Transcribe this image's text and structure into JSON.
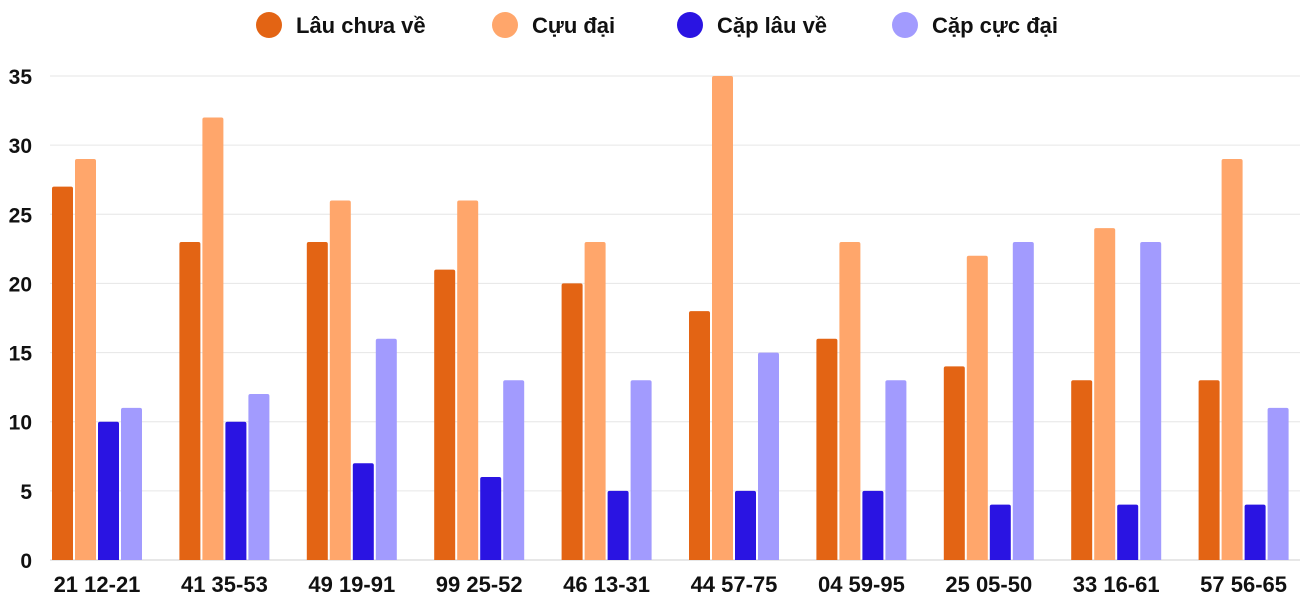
{
  "chart_data": {
    "type": "bar",
    "title": "",
    "xlabel": "",
    "ylabel": "",
    "ylim": [
      0,
      35
    ],
    "yticks": [
      0,
      5,
      10,
      15,
      20,
      25,
      30,
      35
    ],
    "grid": true,
    "legend_position": "top-center",
    "categories": [
      "21 12-21",
      "41 35-53",
      "49 19-91",
      "99 25-52",
      "46 13-31",
      "44 57-75",
      "04 59-95",
      "25 05-50",
      "33 16-61",
      "57 56-65"
    ],
    "series": [
      {
        "name": "Lâu chưa về",
        "color": "#e36414",
        "values": [
          27,
          23,
          23,
          21,
          20,
          18,
          16,
          14,
          13,
          13
        ]
      },
      {
        "name": "Cựu đại",
        "color": "#ffa66b",
        "values": [
          29,
          32,
          26,
          26,
          23,
          35,
          23,
          22,
          24,
          29
        ]
      },
      {
        "name": "Cặp lâu về",
        "color": "#2a14e2",
        "values": [
          10,
          10,
          7,
          6,
          5,
          5,
          5,
          4,
          4,
          4
        ]
      },
      {
        "name": "Cặp cực đại",
        "color": "#a29bfe",
        "values": [
          11,
          12,
          16,
          13,
          13,
          15,
          13,
          23,
          23,
          11
        ]
      }
    ]
  }
}
